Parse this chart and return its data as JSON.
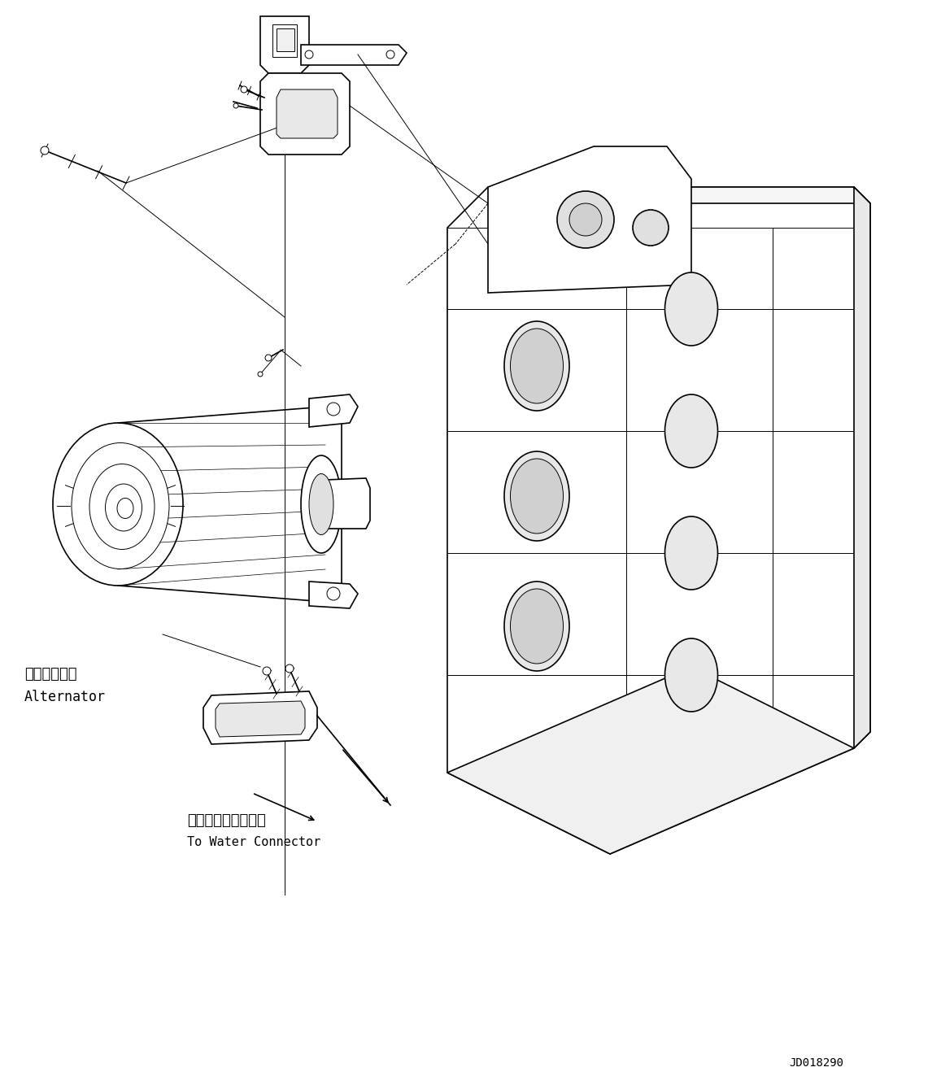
{
  "background_color": "#ffffff",
  "line_color": "#000000",
  "text_color": "#000000",
  "diagram_id": "JD018290",
  "label_alternator_jp": "オルタネータ",
  "label_alternator_en": "Alternator",
  "label_water_jp": "ウォータコネクタヘ",
  "label_water_en": "To Water Connector",
  "figsize": [
    11.57,
    13.39
  ],
  "dpi": 100
}
